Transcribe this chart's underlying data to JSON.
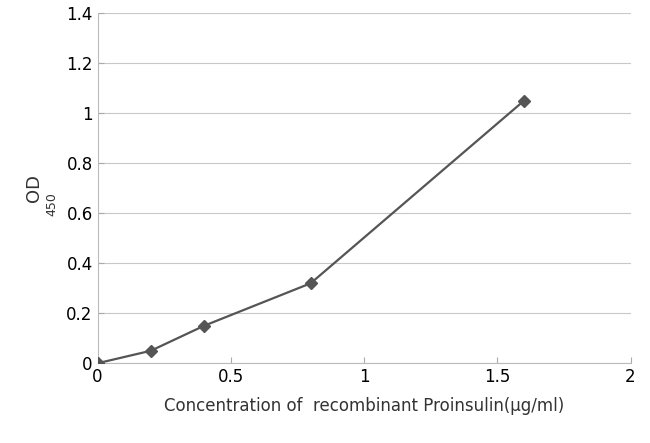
{
  "x": [
    0,
    0.2,
    0.4,
    0.8,
    1.6
  ],
  "y": [
    0.0,
    0.05,
    0.15,
    0.32,
    1.05
  ],
  "xlim": [
    0,
    2
  ],
  "ylim": [
    0,
    1.4
  ],
  "xticks": [
    0,
    0.5,
    1.0,
    1.5,
    2.0
  ],
  "yticks": [
    0,
    0.2,
    0.4,
    0.6,
    0.8,
    1.0,
    1.2,
    1.4
  ],
  "xlabel": "Concentration of  recombinant Proinsulin(μg/ml)",
  "ylabel_main": "OD",
  "ylabel_sub": "450",
  "line_color": "#555555",
  "marker": "D",
  "marker_color": "#555555",
  "marker_size": 6,
  "line_width": 1.6,
  "background_color": "#ffffff",
  "grid_color": "#c8c8c8",
  "xlabel_fontsize": 12,
  "ylabel_fontsize": 13,
  "tick_fontsize": 12
}
